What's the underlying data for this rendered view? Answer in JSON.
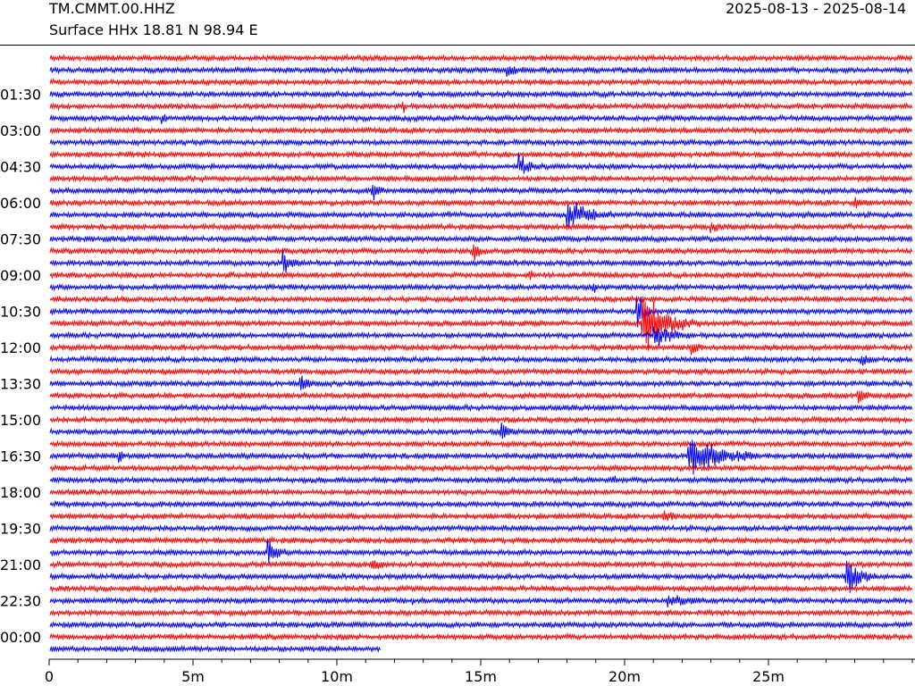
{
  "header": {
    "station": "TM.CMMT.00.HHZ",
    "location": "Surface HHx  18.81 N 98.94 E",
    "date_range": "2025-08-13 - 2025-08-14"
  },
  "chart_data": {
    "type": "line",
    "title": "TM.CMMT.00.HHZ",
    "subtitle": "Surface HHx  18.81 N 98.94 E",
    "xlabel": "",
    "ylabel": "",
    "x_unit": "minutes",
    "xlim": [
      0,
      30
    ],
    "x_ticks": [
      0,
      5,
      10,
      15,
      20,
      25
    ],
    "x_tick_labels": [
      "0",
      "5m",
      "10m",
      "15m",
      "20m",
      "25m"
    ],
    "row_minutes": 30,
    "rows": 50,
    "last_row_end_minute": 11.5,
    "y_tick_labels": [
      "01:30",
      "03:00",
      "04:30",
      "06:00",
      "07:30",
      "09:00",
      "10:30",
      "12:00",
      "13:30",
      "15:00",
      "16:30",
      "18:00",
      "19:30",
      "21:00",
      "22:30",
      "00:00"
    ],
    "y_tick_rows": [
      3,
      6,
      9,
      12,
      15,
      18,
      21,
      24,
      27,
      30,
      33,
      36,
      39,
      42,
      45,
      48
    ],
    "colors": [
      "#ff0000",
      "#0000ff"
    ],
    "events": [
      {
        "row": 1,
        "minute": 15.9,
        "amplitude": 0.5,
        "duration": 0.8
      },
      {
        "row": 3,
        "minute": 12.8,
        "amplitude": 0.45,
        "duration": 0.2
      },
      {
        "row": 4,
        "minute": 12.3,
        "amplitude": 0.7,
        "duration": 0.1
      },
      {
        "row": 5,
        "minute": 3.9,
        "amplitude": 0.9,
        "duration": 0.2
      },
      {
        "row": 9,
        "minute": 16.3,
        "amplitude": 1.2,
        "duration": 0.8
      },
      {
        "row": 11,
        "minute": 11.2,
        "amplitude": 1.0,
        "duration": 0.4
      },
      {
        "row": 12,
        "minute": 28.0,
        "amplitude": 0.5,
        "duration": 0.5
      },
      {
        "row": 13,
        "minute": 18.0,
        "amplitude": 1.8,
        "duration": 1.5
      },
      {
        "row": 14,
        "minute": 23.0,
        "amplitude": 0.6,
        "duration": 0.5
      },
      {
        "row": 16,
        "minute": 14.7,
        "amplitude": 1.1,
        "duration": 0.5
      },
      {
        "row": 17,
        "minute": 8.1,
        "amplitude": 1.4,
        "duration": 0.6
      },
      {
        "row": 18,
        "minute": 16.7,
        "amplitude": 0.6,
        "duration": 0.1
      },
      {
        "row": 19,
        "minute": 18.9,
        "amplitude": 0.7,
        "duration": 0.2
      },
      {
        "row": 21,
        "minute": 20.4,
        "amplitude": 2.6,
        "duration": 0.6
      },
      {
        "row": 22,
        "minute": 20.6,
        "amplitude": 3.3,
        "duration": 2.0
      },
      {
        "row": 23,
        "minute": 21.0,
        "amplitude": 1.1,
        "duration": 1.5
      },
      {
        "row": 24,
        "minute": 22.3,
        "amplitude": 0.8,
        "duration": 0.4
      },
      {
        "row": 25,
        "minute": 28.2,
        "amplitude": 1.0,
        "duration": 0.4
      },
      {
        "row": 27,
        "minute": 8.7,
        "amplitude": 1.0,
        "duration": 0.5
      },
      {
        "row": 28,
        "minute": 28.1,
        "amplitude": 0.8,
        "duration": 0.5
      },
      {
        "row": 31,
        "minute": 15.7,
        "amplitude": 0.9,
        "duration": 0.5
      },
      {
        "row": 33,
        "minute": 2.4,
        "amplitude": 0.9,
        "duration": 0.2
      },
      {
        "row": 33,
        "minute": 22.2,
        "amplitude": 2.3,
        "duration": 2.5
      },
      {
        "row": 35,
        "minute": 19.6,
        "amplitude": 0.6,
        "duration": 0.2
      },
      {
        "row": 38,
        "minute": 21.3,
        "amplitude": 0.8,
        "duration": 0.6
      },
      {
        "row": 41,
        "minute": 7.6,
        "amplitude": 1.6,
        "duration": 0.7
      },
      {
        "row": 42,
        "minute": 11.2,
        "amplitude": 1.0,
        "duration": 0.5
      },
      {
        "row": 43,
        "minute": 27.7,
        "amplitude": 2.6,
        "duration": 1.0
      },
      {
        "row": 45,
        "minute": 12.6,
        "amplitude": 0.4,
        "duration": 0.1
      },
      {
        "row": 45,
        "minute": 21.5,
        "amplitude": 0.6,
        "duration": 1.5
      }
    ]
  }
}
